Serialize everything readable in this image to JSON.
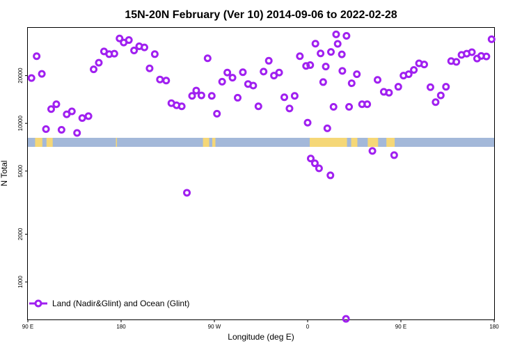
{
  "chart_data": {
    "type": "scatter",
    "title": "15N-20N February (Ver 10)   2014-09-06 to 2022-02-28",
    "xlabel": "Longitude (deg E)",
    "ylabel": "N Total",
    "x_ticks": [
      {
        "value": 90,
        "label": "90 E"
      },
      {
        "value": 180,
        "label": "180"
      },
      {
        "value": 270,
        "label": "90 W"
      },
      {
        "value": 360,
        "label": "0"
      },
      {
        "value": 450,
        "label": "90 E"
      },
      {
        "value": 540,
        "label": "180"
      }
    ],
    "y_ticks": [
      {
        "value": 1000,
        "label": "1000"
      },
      {
        "value": 2000,
        "label": "2000"
      },
      {
        "value": 5000,
        "label": "5000"
      },
      {
        "value": 10000,
        "label": "10000"
      },
      {
        "value": 20000,
        "label": "20000"
      }
    ],
    "xlim": [
      90,
      540
    ],
    "ylim": [
      580,
      40000
    ],
    "yscale": "log",
    "grid": false,
    "legend": {
      "position": "bottom-left"
    },
    "series": [
      {
        "name": "Land (Nadir&Glint) and Ocean (Glint)",
        "color": "#a020f0",
        "marker": "open-circle",
        "x": [
          93.5,
          98.5,
          103.5,
          107.5,
          112.5,
          117.5,
          122.5,
          127.5,
          132.5,
          137.5,
          142.5,
          148.5,
          153.5,
          158.5,
          163.5,
          168.5,
          173.5,
          178.5,
          182.5,
          187.5,
          192.5,
          197.5,
          202.5,
          207.5,
          212.5,
          217.5,
          223.5,
          228.5,
          233.5,
          238.5,
          243.5,
          248.5,
          252.5,
          257.5,
          263.5,
          267.5,
          272.5,
          277.5,
          282.5,
          287.5,
          292.5,
          297.5,
          302.5,
          307.5,
          312.5,
          317.5,
          322.5,
          327.5,
          332.5,
          337.5,
          342.5,
          347.5,
          352.5,
          358.5,
          362.5,
          367.5,
          372.5,
          377.5,
          382.5,
          387.5,
          393.5,
          397.5,
          402.5,
          407.5,
          412.5,
          417.5,
          422.5,
          427.5,
          433.5,
          438.5,
          443.5,
          447.5,
          452.5,
          457.5,
          462.5,
          467.5,
          472.5,
          478.5,
          483.5,
          488.5,
          493.5,
          498.5,
          503.5,
          508.5,
          513.5,
          518.5,
          523.5,
          527.5,
          532.5,
          537.5
        ],
        "y": [
          19300,
          26500,
          20500,
          9200,
          12300,
          13200,
          9100,
          11400,
          11900,
          8700,
          10800,
          11100,
          21900,
          24100,
          28400,
          27300,
          27500,
          34300,
          32300,
          33500,
          28800,
          30600,
          30100,
          22200,
          27300,
          18900,
          18600,
          13400,
          13000,
          12800,
          3650,
          14900,
          16100,
          15000,
          25700,
          14900,
          11500,
          18300,
          20900,
          19400,
          14500,
          21000,
          17700,
          17300,
          12800,
          21200,
          24800,
          20000,
          20900,
          14600,
          12400,
          14900,
          26500,
          23000,
          23300,
          31800,
          27600,
          22800,
          28200,
          36400,
          21400,
          35600,
          17900,
          20400,
          13200,
          13200,
          6700,
          18800,
          15800,
          15600,
          6300,
          17000,
          20000,
          20400,
          21700,
          23900,
          23500,
          16900,
          13600,
          15000,
          17000,
          24700,
          24400,
          27000,
          27500,
          28100,
          25600,
          26600,
          26400,
          33900
        ]
      },
      {
        "x": [
          360,
          363,
          367,
          371,
          375,
          379,
          382,
          385,
          389,
          393,
          397,
          400
        ],
        "y": [
          10100,
          6000,
          5600,
          5200,
          18200,
          9300,
          4700,
          12700,
          31700,
          27200,
          585,
          12700
        ]
      }
    ],
    "background_strip": {
      "ocean_color": "#a3b8d9",
      "land_color": "#f5d777"
    }
  }
}
